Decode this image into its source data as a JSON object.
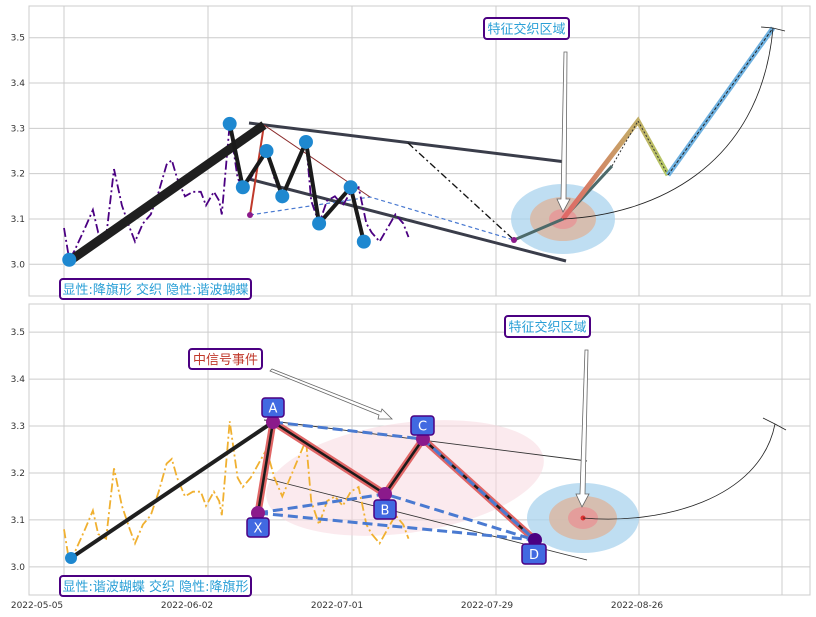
{
  "colors": {
    "grid": "#cccccc",
    "price_top": "#4b0082",
    "price_bottom": "#f0b030",
    "swing": "#1f1f1f",
    "node": "#1e88d0",
    "box_border": "#4b0082",
    "box_text": "#2a9fd6",
    "event_text": "#c0392b",
    "pattern_node": "#4169e1",
    "node_purple": "#8b1a8b",
    "projection_red": "#e06666",
    "projection_blue": "#6fb1e0",
    "zone_outer": "#a9d3ee",
    "zone_mid": "#d9b8a4",
    "zone_inner": "#e69999"
  },
  "x_ticks": [
    "2022-05-05",
    "2022-06-02",
    "2022-07-01",
    "2022-07-29",
    "2022-08-26"
  ],
  "top": {
    "box_label": "显性:降旗形 交织 隐性:谐波蝴蝶",
    "annotation": "特征交织区域"
  },
  "bottom": {
    "box_label": "显性:谐波蝴蝶 交织 隐性:降旗形",
    "annotation": "特征交织区域",
    "event_label": "中信号事件",
    "points": [
      "X",
      "A",
      "B",
      "C",
      "D"
    ]
  },
  "chart_data": [
    {
      "type": "line",
      "y_ticks": [
        3.0,
        3.1,
        3.2,
        3.3,
        3.4,
        3.5
      ],
      "ylim": [
        2.93,
        3.57
      ],
      "x_dates": [
        "2022-05-05",
        "2022-06-02",
        "2022-07-01",
        "2022-07-29",
        "2022-08-26"
      ],
      "series": [
        {
          "values": [
            [
              0,
              3.08
            ],
            [
              2,
              3.01
            ],
            [
              4,
              3.03
            ],
            [
              8,
              3.08
            ],
            [
              11,
              3.12
            ],
            [
              13,
              3.07
            ],
            [
              16,
              3.06
            ],
            [
              19,
              3.21
            ],
            [
              22,
              3.13
            ],
            [
              25,
              3.08
            ],
            [
              27,
              3.05
            ],
            [
              30,
              3.09
            ],
            [
              33,
              3.11
            ],
            [
              36,
              3.16
            ],
            [
              39,
              3.22
            ],
            [
              41,
              3.23
            ],
            [
              43,
              3.19
            ],
            [
              46,
              3.15
            ],
            [
              49,
              3.16
            ],
            [
              52,
              3.16
            ],
            [
              54,
              3.13
            ],
            [
              57,
              3.16
            ],
            [
              59,
              3.14
            ],
            [
              60,
              3.11
            ],
            [
              63,
              3.31
            ],
            [
              66,
              3.19
            ],
            [
              68,
              3.17
            ],
            [
              71,
              3.19
            ],
            [
              74,
              3.22
            ],
            [
              77,
              3.25
            ],
            [
              80,
              3.19
            ],
            [
              83,
              3.15
            ],
            [
              86,
              3.19
            ],
            [
              89,
              3.23
            ],
            [
              92,
              3.27
            ],
            [
              94,
              3.14
            ],
            [
              97,
              3.09
            ],
            [
              100,
              3.14
            ],
            [
              103,
              3.15
            ],
            [
              106,
              3.13
            ],
            [
              109,
              3.16
            ],
            [
              112,
              3.17
            ],
            [
              115,
              3.09
            ],
            [
              117,
              3.07
            ],
            [
              120,
              3.05
            ],
            [
              123,
              3.08
            ],
            [
              126,
              3.11
            ],
            [
              129,
              3.09
            ],
            [
              131,
              3.06
            ]
          ]
        }
      ],
      "swing_nodes": [
        [
          2,
          3.01
        ],
        [
          63,
          3.31
        ],
        [
          68,
          3.17
        ],
        [
          77,
          3.25
        ],
        [
          83,
          3.15
        ],
        [
          92,
          3.27
        ],
        [
          97,
          3.09
        ],
        [
          109,
          3.17
        ],
        [
          114,
          3.05
        ]
      ],
      "projection": [
        [
          114,
          3.05
        ],
        [
          126,
          3.11
        ],
        [
          142,
          3.32
        ],
        [
          150,
          3.2
        ],
        [
          169,
          3.53
        ]
      ]
    },
    {
      "type": "line",
      "y_ticks": [
        3.0,
        3.1,
        3.2,
        3.3,
        3.4,
        3.5
      ],
      "ylim": [
        2.94,
        3.56
      ],
      "x_dates": [
        "2022-05-05",
        "2022-06-02",
        "2022-07-01",
        "2022-07-29",
        "2022-08-26"
      ],
      "pattern_points": {
        "X": [
          60,
          3.11
        ],
        "A": [
          63,
          3.31
        ],
        "B": [
          82,
          3.15
        ],
        "C": [
          92,
          3.27
        ],
        "D": [
          117,
          3.05
        ]
      }
    }
  ]
}
